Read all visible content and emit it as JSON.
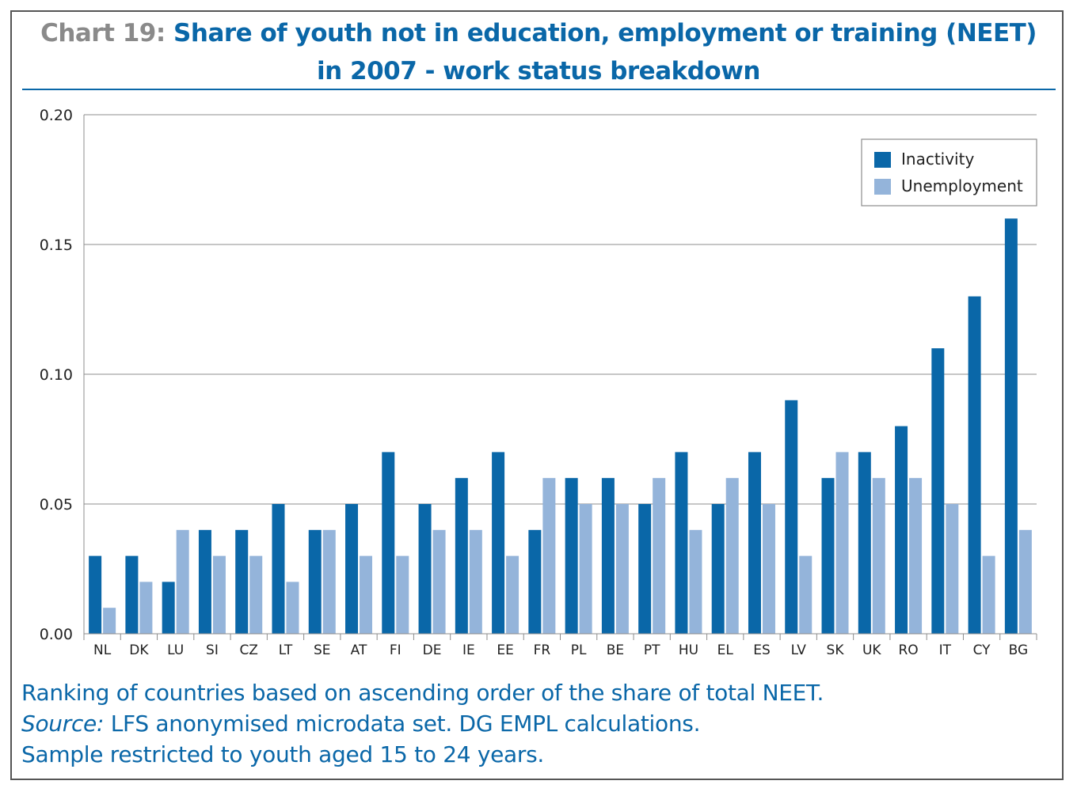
{
  "title": {
    "prefix": "Chart 19:",
    "line1": "Share of youth not in education, employment or training (NEET)",
    "line2": "in 2007 - work status breakdown"
  },
  "notes": {
    "line1": "Ranking of countries based on ascending order of the share of total NEET.",
    "source_label": "Source:",
    "source_text": "LFS anonymised microdata set. DG EMPL calculations.",
    "line3": "Sample restricted to youth aged 15 to 24 years."
  },
  "colors": {
    "inactivity": "#0a67a8",
    "unemployment": "#94b4da",
    "grid": "#8c8c8c",
    "axis_text": "#222222"
  },
  "chart_data": {
    "type": "bar",
    "title": "Share of youth not in education, employment or training (NEET) in 2007 - work status breakdown",
    "categories": [
      "NL",
      "DK",
      "LU",
      "SI",
      "CZ",
      "LT",
      "SE",
      "AT",
      "FI",
      "DE",
      "IE",
      "EE",
      "FR",
      "PL",
      "BE",
      "PT",
      "HU",
      "EL",
      "ES",
      "LV",
      "SK",
      "UK",
      "RO",
      "IT",
      "CY",
      "BG"
    ],
    "series": [
      {
        "name": "Inactivity",
        "values": [
          0.03,
          0.03,
          0.02,
          0.04,
          0.04,
          0.05,
          0.04,
          0.05,
          0.07,
          0.05,
          0.06,
          0.07,
          0.04,
          0.06,
          0.06,
          0.05,
          0.07,
          0.05,
          0.07,
          0.09,
          0.06,
          0.07,
          0.08,
          0.11,
          0.13,
          0.16
        ]
      },
      {
        "name": "Unemployment",
        "values": [
          0.01,
          0.02,
          0.04,
          0.03,
          0.03,
          0.02,
          0.04,
          0.03,
          0.03,
          0.04,
          0.04,
          0.03,
          0.06,
          0.05,
          0.05,
          0.06,
          0.04,
          0.06,
          0.05,
          0.03,
          0.07,
          0.06,
          0.06,
          0.05,
          0.03,
          0.04
        ]
      }
    ],
    "xlabel": "",
    "ylabel": "",
    "ylim": [
      0,
      0.2
    ],
    "yticks": [
      "0.00",
      "0.05",
      "0.10",
      "0.15",
      "0.20"
    ],
    "grid": true,
    "legend": "top-right"
  }
}
